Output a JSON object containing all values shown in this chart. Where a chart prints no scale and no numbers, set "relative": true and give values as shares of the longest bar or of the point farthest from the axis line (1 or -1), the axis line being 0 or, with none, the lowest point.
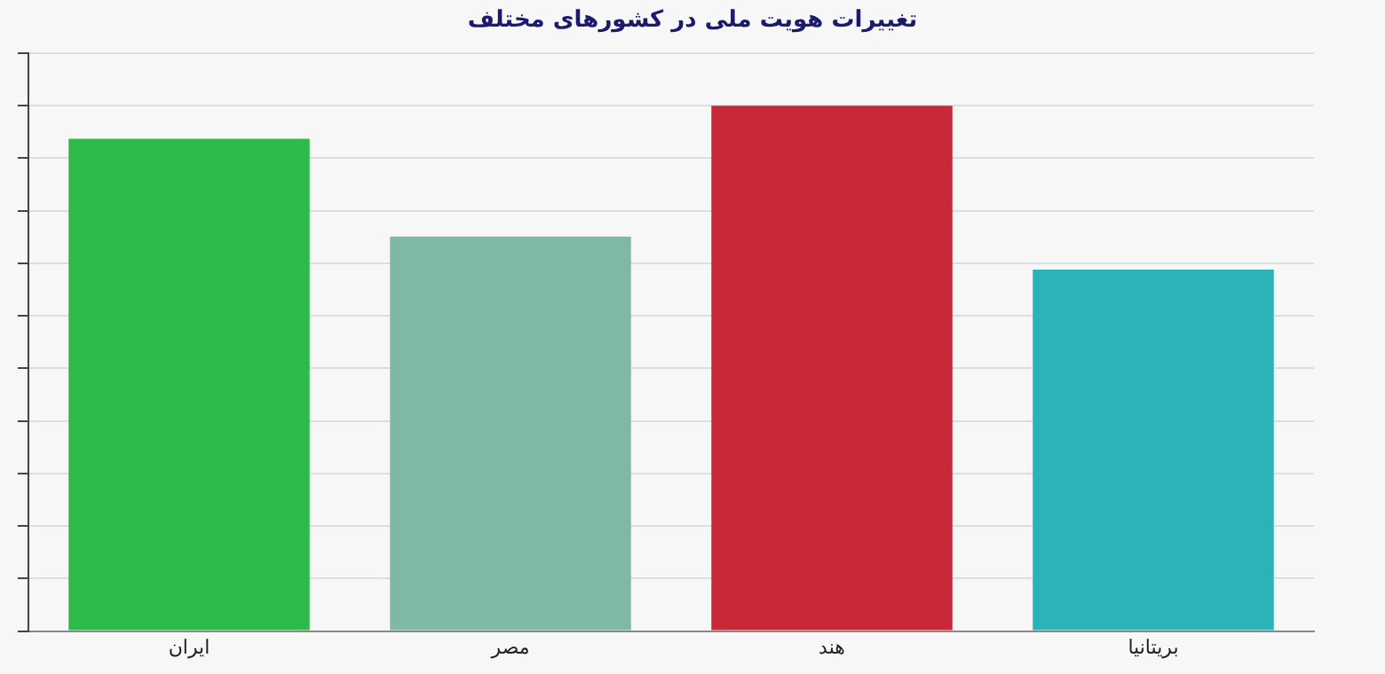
{
  "chart_data": {
    "type": "bar",
    "title": "تغییرات هویت ملی در کشورهای مختلف",
    "relative": true,
    "grid": "y",
    "categories": [
      "ایران",
      "مصر",
      "هند",
      "بریتانیا"
    ],
    "values": [
      0.937,
      0.751,
      1,
      0.688
    ],
    "colors": [
      "#2dba4a",
      "#80b8a8",
      "#c82838",
      "#2ab4b8"
    ]
  }
}
